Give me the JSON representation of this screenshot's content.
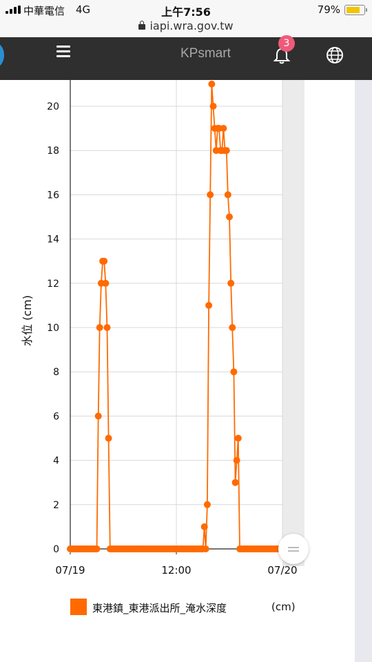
{
  "status_bar": {
    "carrier": "中華電信",
    "network": "4G",
    "time": "上午7:56",
    "battery_pct": "79%",
    "battery_level": 0.79,
    "url": "iapi.wra.gov.tw"
  },
  "header": {
    "brand": "KPsmart",
    "notification_count": "3",
    "bg_color": "#2f2f2f"
  },
  "chart_data": {
    "type": "line",
    "title": "",
    "ylabel": "水位 (cm)",
    "ylim": [
      0,
      21
    ],
    "yticks": [
      0,
      2,
      4,
      6,
      8,
      10,
      12,
      14,
      16,
      18,
      20
    ],
    "x_ticks": [
      {
        "label": "07/19",
        "x": 0
      },
      {
        "label": "12:00",
        "x": 12
      },
      {
        "label": "07/20",
        "x": 24
      }
    ],
    "xlim": [
      0,
      24
    ],
    "grid": true,
    "line_color": "#ff6a00",
    "series": [
      {
        "name": "東港鎮_東港派出所_淹水深度",
        "unit": "(cm)",
        "points": [
          [
            0,
            0
          ],
          [
            0.17,
            0
          ],
          [
            0.33,
            0
          ],
          [
            0.5,
            0
          ],
          [
            0.67,
            0
          ],
          [
            0.83,
            0
          ],
          [
            1,
            0
          ],
          [
            1.17,
            0
          ],
          [
            1.33,
            0
          ],
          [
            1.5,
            0
          ],
          [
            1.67,
            0
          ],
          [
            1.83,
            0
          ],
          [
            2,
            0
          ],
          [
            2.17,
            0
          ],
          [
            2.33,
            0
          ],
          [
            2.5,
            0
          ],
          [
            2.67,
            0
          ],
          [
            2.83,
            0
          ],
          [
            3,
            0
          ],
          [
            3.17,
            6
          ],
          [
            3.33,
            10
          ],
          [
            3.5,
            12
          ],
          [
            3.67,
            13
          ],
          [
            3.83,
            13
          ],
          [
            4,
            12
          ],
          [
            4.17,
            10
          ],
          [
            4.33,
            5
          ],
          [
            4.5,
            0
          ],
          [
            4.67,
            0
          ],
          [
            4.83,
            0
          ],
          [
            5,
            0
          ],
          [
            5.17,
            0
          ],
          [
            5.33,
            0
          ],
          [
            5.5,
            0
          ],
          [
            5.67,
            0
          ],
          [
            5.83,
            0
          ],
          [
            6,
            0
          ],
          [
            6.17,
            0
          ],
          [
            6.33,
            0
          ],
          [
            6.5,
            0
          ],
          [
            6.67,
            0
          ],
          [
            6.83,
            0
          ],
          [
            7,
            0
          ],
          [
            7.17,
            0
          ],
          [
            7.33,
            0
          ],
          [
            7.5,
            0
          ],
          [
            7.67,
            0
          ],
          [
            7.83,
            0
          ],
          [
            8,
            0
          ],
          [
            8.17,
            0
          ],
          [
            8.33,
            0
          ],
          [
            8.5,
            0
          ],
          [
            8.67,
            0
          ],
          [
            8.83,
            0
          ],
          [
            9,
            0
          ],
          [
            9.17,
            0
          ],
          [
            9.33,
            0
          ],
          [
            9.5,
            0
          ],
          [
            9.67,
            0
          ],
          [
            9.83,
            0
          ],
          [
            10,
            0
          ],
          [
            10.17,
            0
          ],
          [
            10.33,
            0
          ],
          [
            10.5,
            0
          ],
          [
            10.67,
            0
          ],
          [
            10.83,
            0
          ],
          [
            11,
            0
          ],
          [
            11.17,
            0
          ],
          [
            11.33,
            0
          ],
          [
            11.5,
            0
          ],
          [
            11.67,
            0
          ],
          [
            11.83,
            0
          ],
          [
            12,
            0
          ],
          [
            12.17,
            0
          ],
          [
            12.33,
            0
          ],
          [
            12.5,
            0
          ],
          [
            12.67,
            0
          ],
          [
            12.83,
            0
          ],
          [
            13,
            0
          ],
          [
            13.17,
            0
          ],
          [
            13.33,
            0
          ],
          [
            13.5,
            0
          ],
          [
            13.67,
            0
          ],
          [
            13.83,
            0
          ],
          [
            14,
            0
          ],
          [
            14.17,
            0
          ],
          [
            14.33,
            0
          ],
          [
            14.5,
            0
          ],
          [
            14.67,
            0
          ],
          [
            14.83,
            0
          ],
          [
            15,
            0
          ],
          [
            15.17,
            1
          ],
          [
            15.33,
            0
          ],
          [
            15.5,
            2
          ],
          [
            15.67,
            11
          ],
          [
            15.83,
            16
          ],
          [
            16,
            21
          ],
          [
            16.17,
            20
          ],
          [
            16.33,
            19
          ],
          [
            16.5,
            18
          ],
          [
            16.67,
            19
          ],
          [
            16.83,
            19
          ],
          [
            17,
            18
          ],
          [
            17.17,
            18
          ],
          [
            17.33,
            19
          ],
          [
            17.5,
            18
          ],
          [
            17.67,
            18
          ],
          [
            17.83,
            16
          ],
          [
            18,
            15
          ],
          [
            18.17,
            12
          ],
          [
            18.33,
            10
          ],
          [
            18.5,
            8
          ],
          [
            18.67,
            3
          ],
          [
            18.83,
            4
          ],
          [
            19,
            5
          ],
          [
            19.17,
            0
          ],
          [
            19.33,
            0
          ],
          [
            19.5,
            0
          ],
          [
            19.67,
            0
          ],
          [
            19.83,
            0
          ],
          [
            20,
            0
          ],
          [
            20.17,
            0
          ],
          [
            20.33,
            0
          ],
          [
            20.5,
            0
          ],
          [
            20.67,
            0
          ],
          [
            20.83,
            0
          ],
          [
            21,
            0
          ],
          [
            21.17,
            0
          ],
          [
            21.33,
            0
          ],
          [
            21.5,
            0
          ],
          [
            21.67,
            0
          ],
          [
            21.83,
            0
          ],
          [
            22,
            0
          ],
          [
            22.17,
            0
          ],
          [
            22.33,
            0
          ],
          [
            22.5,
            0
          ],
          [
            22.67,
            0
          ],
          [
            22.83,
            0
          ],
          [
            23,
            0
          ],
          [
            23.17,
            0
          ],
          [
            23.33,
            0
          ],
          [
            23.5,
            0
          ],
          [
            23.67,
            0
          ],
          [
            23.83,
            0
          ],
          [
            24,
            0
          ]
        ]
      }
    ]
  }
}
